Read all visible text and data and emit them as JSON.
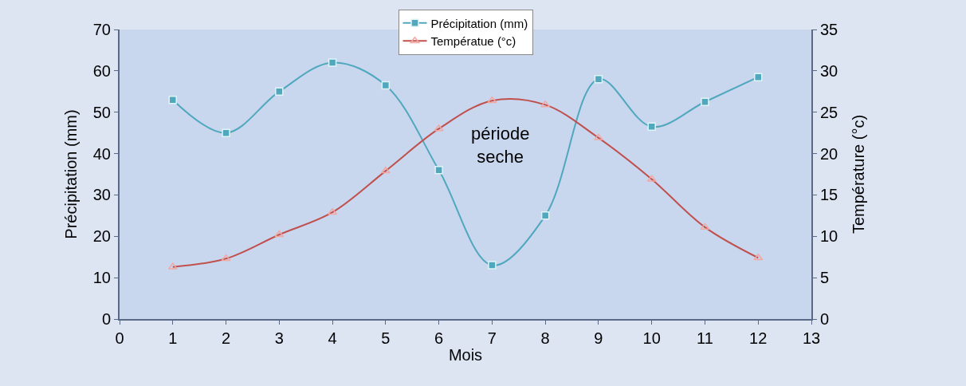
{
  "chart_data": {
    "type": "line",
    "xlabel": "Mois",
    "ylabel": "Précipitation (mm)",
    "y2label": "Température (°c)",
    "x": [
      1,
      2,
      3,
      4,
      5,
      6,
      7,
      8,
      9,
      10,
      11,
      12
    ],
    "series": [
      {
        "name": "Précipitation (mm)",
        "color": "#4fa8bd",
        "marker": "square",
        "values": [
          53,
          45,
          55,
          62,
          56.5,
          36,
          13,
          25,
          58,
          46.5,
          52.5,
          58.5
        ]
      },
      {
        "name": "Températue (°c)",
        "color": "#c0504d",
        "marker": "triangle",
        "axis": "y2",
        "values": [
          6.3,
          7.3,
          10.2,
          12.9,
          17.9,
          23,
          26.4,
          25.9,
          21.9,
          16.9,
          11.1,
          7.4
        ]
      }
    ],
    "xlim": [
      0,
      13
    ],
    "xticks": [
      0,
      1,
      2,
      3,
      4,
      5,
      6,
      7,
      8,
      9,
      10,
      11,
      12,
      13
    ],
    "ylim": [
      0,
      70
    ],
    "yticks": [
      0,
      10,
      20,
      30,
      40,
      50,
      60,
      70
    ],
    "y2lim": [
      0,
      35
    ],
    "y2ticks": [
      0,
      5,
      10,
      15,
      20,
      25,
      30,
      35
    ],
    "annotations": [
      "période\nseche"
    ],
    "legend": "top",
    "grid": false,
    "line_style": "solid"
  }
}
